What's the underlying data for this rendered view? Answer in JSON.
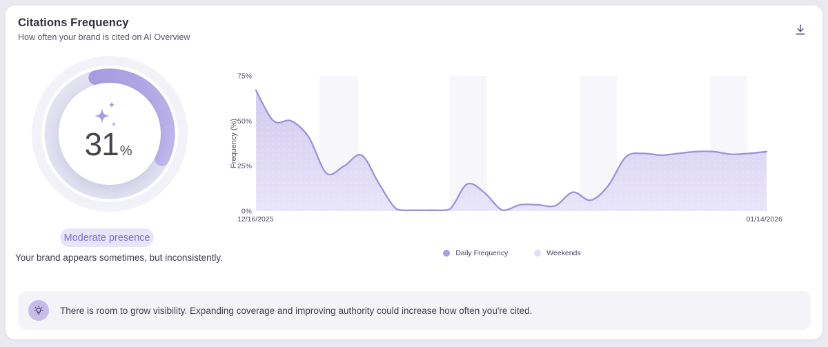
{
  "header": {
    "title": "Citations Frequency",
    "subtitle": "How often your brand is cited on AI Overview",
    "download_icon": "download-icon"
  },
  "gauge": {
    "value": 31,
    "unit": "%",
    "badge_label": "Moderate presence",
    "caption": "Your brand appears sometimes, but inconsistently.",
    "sparkles_icon": "sparkles-icon",
    "colors": {
      "halo": "#f3f2f8",
      "track": "#e3e3f2",
      "arc_start": "#a99de2",
      "arc_end": "#c1b8ec",
      "sparkle": "#a99ce8",
      "number": "#45454e",
      "badge_bg": "#e9e5f8",
      "badge_text": "#7a6ed0"
    }
  },
  "chart_data": {
    "type": "area",
    "title": "",
    "xlabel": "",
    "ylabel": "Frequency (%)",
    "x_start_label": "12/16/2025",
    "x_end_label": "01/14/2026",
    "ylim": [
      0,
      75
    ],
    "yticks": [
      {
        "value": 75,
        "label": "75%"
      },
      {
        "value": 50,
        "label": "50%"
      },
      {
        "value": 25,
        "label": "25%"
      },
      {
        "value": 0,
        "label": "0%"
      }
    ],
    "grid": false,
    "legend_position": "bottom-center",
    "series": [
      {
        "name": "Daily Frequency",
        "values": [
          67,
          50,
          50,
          41,
          21,
          25,
          31,
          15,
          1,
          0.5,
          0.5,
          1,
          15,
          10,
          0.5,
          3.5,
          3.5,
          3,
          10.5,
          6,
          14,
          30,
          32,
          31,
          32,
          33,
          33,
          31.5,
          32,
          33
        ]
      }
    ],
    "weekend_bands_days": [
      [
        3.6,
        5.8
      ],
      [
        11.0,
        13.1
      ],
      [
        18.4,
        20.5
      ],
      [
        25.8,
        27.9
      ]
    ],
    "legend": [
      {
        "label": "Daily Frequency",
        "color": "#a89ce3"
      },
      {
        "label": "Weekends",
        "color": "#e1def2"
      }
    ],
    "colors": {
      "line": "#9c90dc",
      "fill_top": "#d1caee",
      "fill_bottom": "#e9e5f9",
      "band": "#f7f6fa",
      "tick_text": "#50506a"
    }
  },
  "insight": {
    "icon": "lightbulb-icon",
    "text": "There is room to grow visibility. Expanding coverage and improving authority could increase how often you're cited."
  }
}
